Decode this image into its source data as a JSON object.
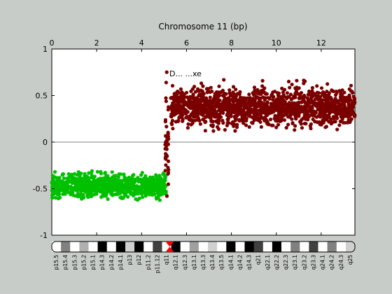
{
  "chart_data": {
    "type": "scatter",
    "title": "Chromosome 11 (bp)",
    "x_axis": {
      "position": "top",
      "range": [
        0,
        13.5
      ],
      "ticks": [
        0,
        2,
        4,
        6,
        8,
        10,
        12
      ]
    },
    "y_axis": {
      "range": [
        -1,
        1
      ],
      "ticks": [
        1,
        0.5,
        0,
        -0.5,
        -1
      ],
      "tick_labels": [
        "1",
        "0.5",
        "0",
        "-0.5",
        "-1"
      ]
    },
    "zero_line": true,
    "annotation": "D... ...xe",
    "series": [
      {
        "color": "#00c000",
        "x_range": [
          0.0,
          5.1
        ],
        "y_center": -0.47,
        "y_spread": 0.11,
        "point_count": 900
      },
      {
        "color": "#7a0000",
        "x_range": [
          5.3,
          13.5
        ],
        "y_center": 0.38,
        "y_spread": 0.18,
        "point_count": 1500
      },
      {
        "color": "#7a0000",
        "x_range": [
          5.05,
          5.2
        ],
        "y_center": 0.0,
        "y_spread": 0.55,
        "point_count": 45
      }
    ],
    "colors": {
      "plot_background": "#ffffff",
      "figure_background": "#c8ccc8",
      "centromere": "#ff0000"
    }
  },
  "ideogram": {
    "bands": [
      "p15.5",
      "p15.4",
      "p15.3",
      "p15.2",
      "p15.1",
      "p14.3",
      "p14.2",
      "p14.1",
      "p13",
      "p12",
      "p11.2",
      "p11.12",
      "q11",
      "q12.1",
      "q12.3",
      "q13.1",
      "q13.3",
      "q13.4",
      "q13.5",
      "q14.1",
      "q14.2",
      "q14.3",
      "q21",
      "q22.1",
      "q22.2",
      "q22.3",
      "q23.1",
      "q23.2",
      "q23.3",
      "q24.1",
      "q24.2",
      "q24.3",
      "q25"
    ],
    "band_labels": [
      "p15.5",
      "p15.4",
      "p15.3",
      "p15.2",
      "p15.1",
      "p14.3",
      "p14.2",
      "p14.1",
      "p13",
      "p12",
      "p11.2",
      "p11.12",
      "q11",
      "q12.1",
      "q12.3",
      "q13.1",
      "q13.3",
      "q13.4",
      "q13.5",
      "q14.1",
      "q14.2",
      "q14.3",
      "q21",
      "q22.1",
      "q22.2",
      "q22.3",
      "q23.1",
      "q23.2",
      "q23.3",
      "q24.1",
      "q24.2",
      "q24.3",
      "q25"
    ]
  }
}
